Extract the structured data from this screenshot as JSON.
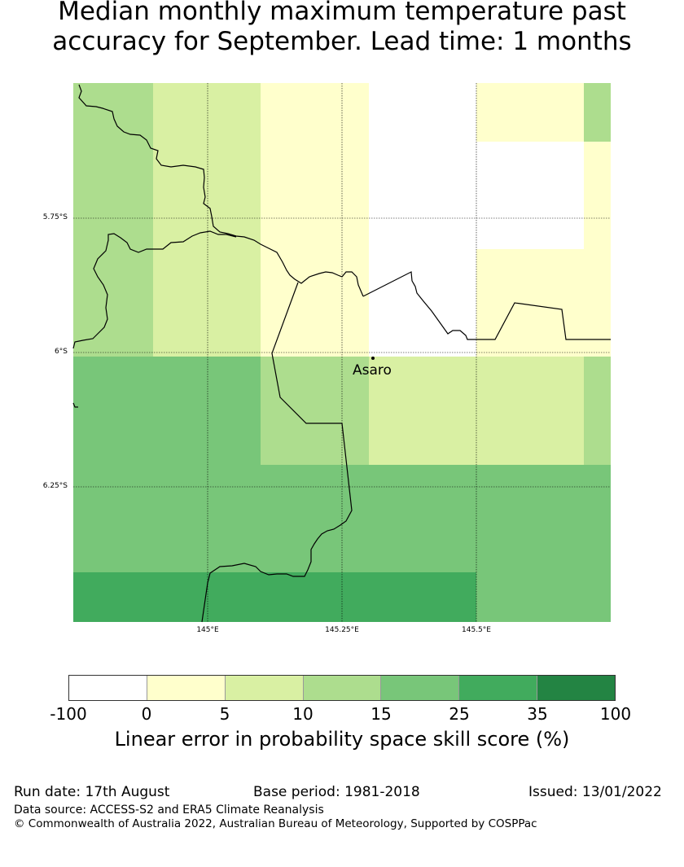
{
  "title": {
    "line1": "Median monthly maximum temperature past",
    "line2": "accuracy for September. Lead time: 1 months"
  },
  "map": {
    "lat_labels": [
      "5.75°S",
      "6°S",
      "6.25°S"
    ],
    "lon_labels": [
      "145°E",
      "145.25°E",
      "145.5°E"
    ],
    "place_name": "Asaro",
    "grid_cells": [
      [
        "c10",
        "c5",
        "c0",
        "cneg",
        "c0",
        "c10"
      ],
      [
        "c10",
        "c5",
        "c0",
        "cneg",
        "cneg",
        "c0"
      ],
      [
        "c10",
        "c5",
        "c0",
        "cneg",
        "c0",
        "c0"
      ],
      [
        "c15",
        "c15",
        "c10",
        "c5",
        "c5",
        "c10"
      ],
      [
        "c15",
        "c15",
        "c15",
        "c15",
        "c15",
        "c15"
      ],
      [
        "c25",
        "c25",
        "c25",
        "c25",
        "c15",
        "c15"
      ]
    ],
    "colors": {
      "cneg": "#ffffff",
      "c0": "#ffffcc",
      "c5": "#d9f0a3",
      "c10": "#addd8e",
      "c15": "#78c679",
      "c25": "#41ab5d",
      "c35": "#238443"
    }
  },
  "colorbar": {
    "ticks": [
      "-100",
      "0",
      "5",
      "10",
      "15",
      "25",
      "35",
      "100"
    ],
    "label": "Linear error in probability space skill score (%)"
  },
  "footer": {
    "run_date": "Run date: 17th August",
    "base_period": "Base period: 1981-2018",
    "issued": "Issued: 13/01/2022",
    "data_source": "Data source: ACCESS-S2 and ERA5 Climate Reanalysis",
    "copyright": "© Commonwealth of Australia 2022, Australian Bureau of Meteorology, Supported by COSPPac"
  }
}
